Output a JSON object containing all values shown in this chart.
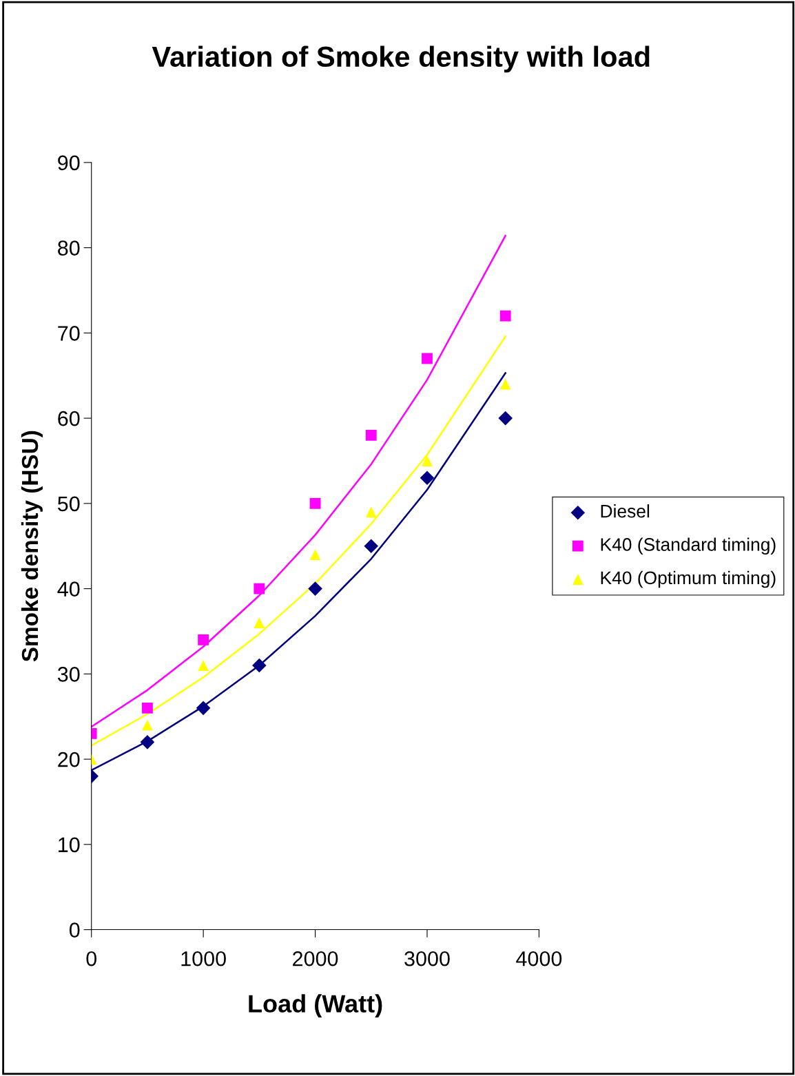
{
  "chart_data": {
    "type": "scatter",
    "title": "Variation of Smoke density with load",
    "xlabel": "Load (Watt)",
    "ylabel": "Smoke density (HSU)",
    "xlim": [
      0,
      4000
    ],
    "xticks": [
      0,
      1000,
      2000,
      3000,
      4000
    ],
    "ylim": [
      0,
      90
    ],
    "yticks": [
      0,
      10,
      20,
      30,
      40,
      50,
      60,
      70,
      80,
      90
    ],
    "grid": false,
    "legend": "right",
    "series": [
      {
        "name": "Diesel",
        "marker": "diamond",
        "color": "#000080",
        "x": [
          0,
          500,
          1000,
          1500,
          2000,
          2500,
          3000,
          3700
        ],
        "values": [
          18,
          22,
          26,
          31,
          40,
          45,
          53,
          60
        ]
      },
      {
        "name": "K40 (Standard timing)",
        "marker": "square",
        "color": "#ff00ff",
        "x": [
          0,
          500,
          1000,
          1500,
          2000,
          2500,
          3000,
          3700
        ],
        "values": [
          23,
          26,
          34,
          40,
          50,
          58,
          67,
          72
        ]
      },
      {
        "name": "K40 (Optimum timing)",
        "marker": "triangle",
        "color": "#ffff00",
        "x": [
          0,
          500,
          1000,
          1500,
          2000,
          2500,
          3000,
          3700
        ],
        "values": [
          20,
          24,
          31,
          36,
          44,
          49,
          55,
          64
        ]
      },
      {
        "type": "line",
        "marker": "none",
        "color": "#000080",
        "x": [
          0,
          500,
          1000,
          1500,
          2000,
          2500,
          3000,
          3700
        ],
        "values": [
          18.7,
          22.1,
          26.2,
          31.0,
          36.8,
          43.5,
          51.6,
          65.3
        ]
      },
      {
        "type": "line",
        "marker": "none",
        "color": "#ff00ff",
        "x": [
          0,
          500,
          1000,
          1500,
          2000,
          2500,
          3000,
          3700
        ],
        "values": [
          23.8,
          28.1,
          33.2,
          39.2,
          46.3,
          54.6,
          64.5,
          81.4
        ]
      },
      {
        "type": "line",
        "marker": "none",
        "color": "#ffff00",
        "x": [
          0,
          500,
          1000,
          1500,
          2000,
          2500,
          3000,
          3700
        ],
        "values": [
          21.6,
          25.3,
          29.6,
          34.7,
          40.6,
          47.6,
          55.7,
          69.6
        ]
      }
    ]
  }
}
